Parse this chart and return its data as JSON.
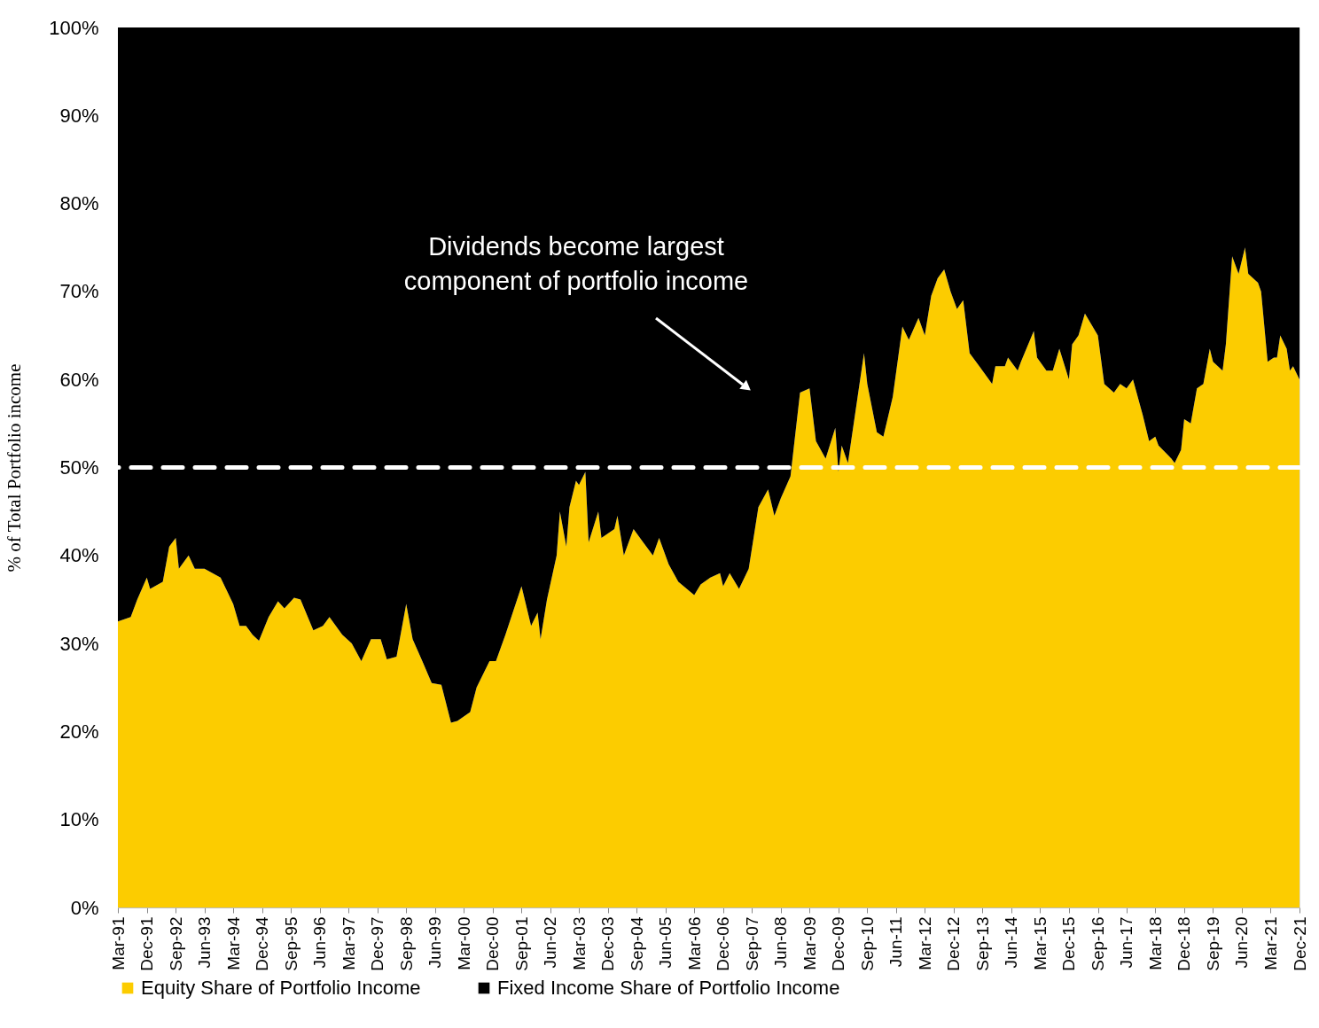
{
  "chart_data": {
    "type": "area",
    "stacked": true,
    "ylabel": "% of Total Portfolio income",
    "legend": "bottom",
    "grid": false,
    "annotations": [
      "Dividends become largest\ncomponent of portfolio income"
    ],
    "ref_lines": [
      {
        "axis": "y",
        "value": 50,
        "label": null,
        "color": "#ffffff",
        "line_style": "dashed"
      }
    ],
    "ylim": [
      0,
      100
    ],
    "yticks": [
      {
        "value": 0,
        "label": "0%"
      },
      {
        "value": 10,
        "label": "10%"
      },
      {
        "value": 20,
        "label": "20%"
      },
      {
        "value": 30,
        "label": "30%"
      },
      {
        "value": 40,
        "label": "40%"
      },
      {
        "value": 50,
        "label": "50%"
      },
      {
        "value": 60,
        "label": "60%"
      },
      {
        "value": 70,
        "label": "70%"
      },
      {
        "value": 80,
        "label": "80%"
      },
      {
        "value": 90,
        "label": "90%"
      },
      {
        "value": 100,
        "label": "100%"
      }
    ],
    "xlim": [
      "1991-03",
      "2021-12"
    ],
    "xticks": [
      {
        "value": "1991-03",
        "label": "Mar-91"
      },
      {
        "value": "1991-12",
        "label": "Dec-91"
      },
      {
        "value": "1992-09",
        "label": "Sep-92"
      },
      {
        "value": "1993-06",
        "label": "Jun-93"
      },
      {
        "value": "1994-03",
        "label": "Mar-94"
      },
      {
        "value": "1994-12",
        "label": "Dec-94"
      },
      {
        "value": "1995-09",
        "label": "Sep-95"
      },
      {
        "value": "1996-06",
        "label": "Jun-96"
      },
      {
        "value": "1997-03",
        "label": "Mar-97"
      },
      {
        "value": "1997-12",
        "label": "Dec-97"
      },
      {
        "value": "1998-09",
        "label": "Sep-98"
      },
      {
        "value": "1999-06",
        "label": "Jun-99"
      },
      {
        "value": "2000-03",
        "label": "Mar-00"
      },
      {
        "value": "2000-12",
        "label": "Dec-00"
      },
      {
        "value": "2001-09",
        "label": "Sep-01"
      },
      {
        "value": "2002-06",
        "label": "Jun-02"
      },
      {
        "value": "2003-03",
        "label": "Mar-03"
      },
      {
        "value": "2003-12",
        "label": "Dec-03"
      },
      {
        "value": "2004-09",
        "label": "Sep-04"
      },
      {
        "value": "2005-06",
        "label": "Jun-05"
      },
      {
        "value": "2006-03",
        "label": "Mar-06"
      },
      {
        "value": "2006-12",
        "label": "Dec-06"
      },
      {
        "value": "2007-09",
        "label": "Sep-07"
      },
      {
        "value": "2008-06",
        "label": "Jun-08"
      },
      {
        "value": "2009-03",
        "label": "Mar-09"
      },
      {
        "value": "2009-12",
        "label": "Dec-09"
      },
      {
        "value": "2010-09",
        "label": "Sep-10"
      },
      {
        "value": "2011-06",
        "label": "Jun-11"
      },
      {
        "value": "2012-03",
        "label": "Mar-12"
      },
      {
        "value": "2012-12",
        "label": "Dec-12"
      },
      {
        "value": "2013-09",
        "label": "Sep-13"
      },
      {
        "value": "2014-06",
        "label": "Jun-14"
      },
      {
        "value": "2015-03",
        "label": "Mar-15"
      },
      {
        "value": "2015-12",
        "label": "Dec-15"
      },
      {
        "value": "2016-09",
        "label": "Sep-16"
      },
      {
        "value": "2017-06",
        "label": "Jun-17"
      },
      {
        "value": "2018-03",
        "label": "Mar-18"
      },
      {
        "value": "2018-12",
        "label": "Dec-18"
      },
      {
        "value": "2019-09",
        "label": "Sep-19"
      },
      {
        "value": "2020-06",
        "label": "Jun-20"
      },
      {
        "value": "2021-03",
        "label": "Mar-21"
      },
      {
        "value": "2021-12",
        "label": "Dec-21"
      }
    ],
    "x": [
      "1991-03",
      "1991-07",
      "1991-09",
      "1991-12",
      "1992-01",
      "1992-05",
      "1992-07",
      "1992-09",
      "1992-10",
      "1993-01",
      "1993-03",
      "1993-06",
      "1993-11",
      "1994-03",
      "1994-05",
      "1994-07",
      "1994-09",
      "1994-11",
      "1995-02",
      "1995-05",
      "1995-07",
      "1995-10",
      "1995-12",
      "1996-04",
      "1996-07",
      "1996-09",
      "1997-01",
      "1997-04",
      "1997-07",
      "1997-10",
      "1998-01",
      "1998-03",
      "1998-06",
      "1998-09",
      "1998-11",
      "1999-02",
      "1999-05",
      "1999-08",
      "1999-11",
      "2000-01",
      "2000-05",
      "2000-07",
      "2000-11",
      "2001-01",
      "2001-04",
      "2001-09",
      "2001-12",
      "2002-02",
      "2002-03",
      "2002-05",
      "2002-08",
      "2002-09",
      "2002-11",
      "2002-12",
      "2003-02",
      "2003-03",
      "2003-05",
      "2003-06",
      "2003-09",
      "2003-10",
      "2004-02",
      "2004-03",
      "2004-05",
      "2004-08",
      "2004-11",
      "2005-02",
      "2005-04",
      "2005-07",
      "2005-10",
      "2006-03",
      "2006-05",
      "2006-08",
      "2006-11",
      "2006-12",
      "2007-02",
      "2007-05",
      "2007-08",
      "2007-11",
      "2008-02",
      "2008-04",
      "2008-06",
      "2008-09",
      "2008-12",
      "2009-03",
      "2009-05",
      "2009-08",
      "2009-11",
      "2009-12",
      "2010-01",
      "2010-03",
      "2010-06",
      "2010-08",
      "2010-09",
      "2010-12",
      "2011-02",
      "2011-05",
      "2011-08",
      "2011-10",
      "2012-01",
      "2012-03",
      "2012-05",
      "2012-07",
      "2012-09",
      "2012-11",
      "2013-01",
      "2013-03",
      "2013-05",
      "2013-08",
      "2013-12",
      "2014-01",
      "2014-04",
      "2014-05",
      "2014-08",
      "2014-09",
      "2015-01",
      "2015-02",
      "2015-05",
      "2015-07",
      "2015-09",
      "2015-12",
      "2016-01",
      "2016-03",
      "2016-05",
      "2016-09",
      "2016-11",
      "2017-02",
      "2017-04",
      "2017-06",
      "2017-08",
      "2017-11",
      "2018-01",
      "2018-03",
      "2018-04",
      "2018-08",
      "2018-09",
      "2018-11",
      "2018-12",
      "2019-02",
      "2019-04",
      "2019-06",
      "2019-08",
      "2019-09",
      "2019-12",
      "2020-01",
      "2020-03",
      "2020-05",
      "2020-07",
      "2020-08",
      "2020-11",
      "2020-12",
      "2021-02",
      "2021-04",
      "2021-05",
      "2021-06",
      "2021-08",
      "2021-09",
      "2021-10",
      "2021-12"
    ],
    "series": [
      {
        "name": "Equity Share of Portfolio Income",
        "color": "#fccc00",
        "values": [
          32.5,
          33,
          35,
          37.5,
          36.2,
          37,
          41,
          42,
          38.5,
          40,
          38.5,
          38.5,
          37.5,
          34.5,
          32,
          32,
          31,
          30.3,
          33,
          34.8,
          34,
          35.2,
          35,
          31.5,
          32,
          33,
          31,
          30,
          28,
          30.5,
          30.5,
          28.2,
          28.5,
          34.5,
          30.5,
          28,
          25.5,
          25.3,
          21,
          21.2,
          22.2,
          25,
          28,
          28,
          31,
          36.5,
          32,
          33.5,
          30.5,
          35,
          40,
          45,
          41,
          45.5,
          48.5,
          48,
          49.5,
          41.5,
          45,
          42,
          43,
          44.5,
          40,
          43,
          41.5,
          40,
          42,
          39,
          37,
          35.5,
          36.7,
          37.5,
          38,
          36.5,
          38,
          36.2,
          38.5,
          45.5,
          47.5,
          44.5,
          46.5,
          49,
          58.5,
          59,
          53,
          51,
          54.5,
          49.5,
          52.5,
          50.5,
          58,
          63,
          59.5,
          54,
          53.5,
          58,
          66,
          64.5,
          67,
          65,
          69.5,
          71.5,
          72.5,
          70,
          68,
          69,
          63,
          61.5,
          59.5,
          61.5,
          61.5,
          62.5,
          61,
          62,
          65.5,
          62.5,
          61,
          61,
          63.5,
          60,
          64,
          65,
          67.5,
          65,
          59.5,
          58.5,
          59.5,
          59,
          60,
          56,
          53,
          53.5,
          52.5,
          51,
          50.5,
          52,
          55.5,
          55,
          59,
          59.5,
          63.5,
          62,
          61,
          64,
          74,
          72,
          75,
          72,
          71,
          70,
          62,
          62.5,
          62.5,
          65,
          63.5,
          61,
          61.5,
          60
        ]
      },
      {
        "name": "Fixed Income Share of Portfolio Income",
        "color": "#000000",
        "values": [
          67.5,
          67,
          65,
          62.5,
          63.8,
          63,
          59,
          58,
          61.5,
          60,
          61.5,
          61.5,
          62.5,
          65.5,
          68,
          68,
          69,
          69.7,
          67,
          65.2,
          66,
          64.8,
          65,
          68.5,
          68,
          67,
          69,
          70,
          72,
          69.5,
          69.5,
          71.8,
          71.5,
          65.5,
          69.5,
          72,
          74.5,
          74.7,
          79,
          78.8,
          77.8,
          75,
          72,
          72,
          69,
          63.5,
          68,
          66.5,
          69.5,
          65,
          60,
          55,
          59,
          54.5,
          51.5,
          52,
          50.5,
          58.5,
          55,
          58,
          57,
          55.5,
          60,
          57,
          58.5,
          60,
          58,
          61,
          63,
          64.5,
          63.3,
          62.5,
          62,
          63.5,
          62,
          63.8,
          61.5,
          54.5,
          52.5,
          55.5,
          53.5,
          51,
          41.5,
          41,
          47,
          49,
          45.5,
          50.5,
          47.5,
          49.5,
          42,
          37,
          40.5,
          46,
          46.5,
          42,
          34,
          35.5,
          33,
          35,
          30.5,
          28.5,
          27.5,
          30,
          32,
          31,
          37,
          38.5,
          40.5,
          38.5,
          38.5,
          37.5,
          39,
          38,
          34.5,
          37.5,
          39,
          39,
          36.5,
          40,
          36,
          35,
          32.5,
          35,
          40.5,
          41.5,
          40.5,
          41,
          40,
          44,
          47,
          46.5,
          47.5,
          49,
          49.5,
          48,
          44.5,
          45,
          41,
          40.5,
          36.5,
          38,
          39,
          36,
          26,
          28,
          25,
          28,
          29,
          30,
          38,
          37.5,
          37.5,
          35,
          36.5,
          39,
          38.5,
          40
        ]
      }
    ]
  }
}
